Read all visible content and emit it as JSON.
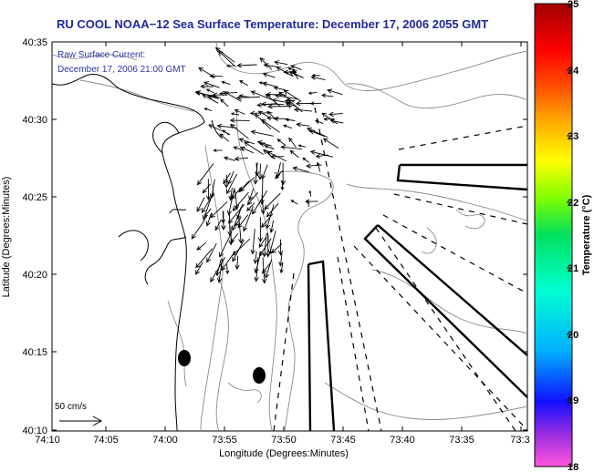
{
  "title": "RU COOL  NOAA−12  Sea Surface Temperature:  December 17, 2006 2055 GMT",
  "annotation": {
    "line1": "Raw Surface Current:",
    "line2": "December 17, 2006 21:00 GMT"
  },
  "x_axis": {
    "label": "Longitude (Degrees:Minutes)",
    "ticks": [
      "74:10",
      "74:05",
      "74:00",
      "73:55",
      "73:50",
      "73:45",
      "73:40",
      "73:35",
      "73:3"
    ]
  },
  "y_axis": {
    "label": "Latitude (Degrees:Minutes)",
    "ticks": [
      "40:35",
      "40:30",
      "40:25",
      "40:20",
      "40:15",
      "40:10"
    ]
  },
  "colorbar": {
    "label": "Temperature (°C)",
    "ticks": [
      "25",
      "24",
      "23",
      "22",
      "21",
      "20",
      "19",
      "18"
    ],
    "range": [
      18,
      25
    ],
    "colors": [
      "#ff55dd",
      "#9a2ce0",
      "#1010ff",
      "#00b0ff",
      "#00ffd0",
      "#00e060",
      "#80ff00",
      "#ffff00",
      "#ffb000",
      "#ff5000",
      "#ff0000",
      "#a00000"
    ]
  },
  "scale_bar": {
    "label": "50 cm/s"
  },
  "styles": {
    "title_color": "#1e2a9a",
    "annotation_color": "#2a34a8",
    "land_line_color": "#000000",
    "contour_color": "#8a8a8a"
  }
}
